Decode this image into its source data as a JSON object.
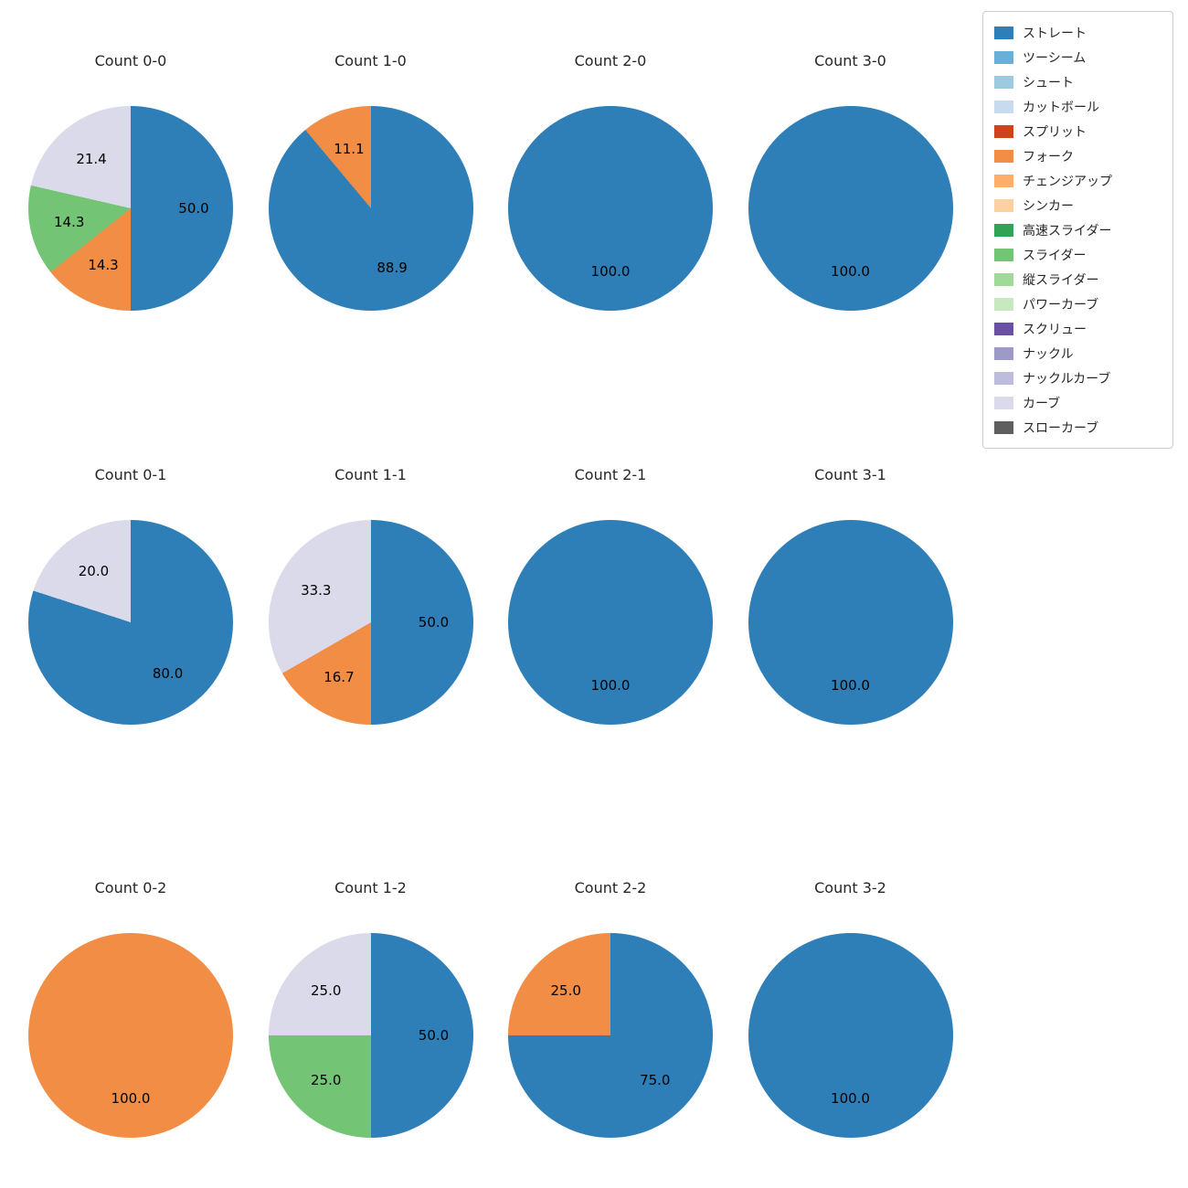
{
  "figure": {
    "background": "#ffffff",
    "text_color": "#262626"
  },
  "palette": {
    "ストレート": "#2e7eb8",
    "ツーシーム": "#6baed6",
    "シュート": "#9ecae1",
    "カットボール": "#c6dbef",
    "スプリット": "#d1431f",
    "フォーク": "#f18d44",
    "チェンジアップ": "#fdae6b",
    "シンカー": "#fdd0a2",
    "高速スライダー": "#31a354",
    "スライダー": "#74c476",
    "縦スライダー": "#a1d99b",
    "パワーカーブ": "#c7e9c0",
    "スクリュー": "#6a51a3",
    "ナックル": "#9e9ac8",
    "ナックルカーブ": "#bcbddc",
    "カーブ": "#dadaeb",
    "スローカーブ": "#5f5f5f"
  },
  "legend": {
    "position": "upper right",
    "items": [
      "ストレート",
      "ツーシーム",
      "シュート",
      "カットボール",
      "スプリット",
      "フォーク",
      "チェンジアップ",
      "シンカー",
      "高速スライダー",
      "スライダー",
      "縦スライダー",
      "パワーカーブ",
      "スクリュー",
      "ナックル",
      "ナックルカーブ",
      "カーブ",
      "スローカーブ"
    ]
  },
  "chart_data": [
    {
      "type": "pie",
      "title": "Count 0-0",
      "slices": [
        {
          "label": "ストレート",
          "value": 50.0
        },
        {
          "label": "フォーク",
          "value": 14.3
        },
        {
          "label": "スライダー",
          "value": 14.3
        },
        {
          "label": "カーブ",
          "value": 21.4
        }
      ]
    },
    {
      "type": "pie",
      "title": "Count 1-0",
      "slices": [
        {
          "label": "ストレート",
          "value": 88.9
        },
        {
          "label": "フォーク",
          "value": 11.1
        }
      ]
    },
    {
      "type": "pie",
      "title": "Count 2-0",
      "slices": [
        {
          "label": "ストレート",
          "value": 100.0
        }
      ]
    },
    {
      "type": "pie",
      "title": "Count 3-0",
      "slices": [
        {
          "label": "ストレート",
          "value": 100.0
        }
      ]
    },
    {
      "type": "pie",
      "title": "Count 0-1",
      "slices": [
        {
          "label": "ストレート",
          "value": 80.0
        },
        {
          "label": "カーブ",
          "value": 20.0
        }
      ]
    },
    {
      "type": "pie",
      "title": "Count 1-1",
      "slices": [
        {
          "label": "ストレート",
          "value": 50.0
        },
        {
          "label": "フォーク",
          "value": 16.7
        },
        {
          "label": "カーブ",
          "value": 33.3
        }
      ]
    },
    {
      "type": "pie",
      "title": "Count 2-1",
      "slices": [
        {
          "label": "ストレート",
          "value": 100.0
        }
      ]
    },
    {
      "type": "pie",
      "title": "Count 3-1",
      "slices": [
        {
          "label": "ストレート",
          "value": 100.0
        }
      ]
    },
    {
      "type": "pie",
      "title": "Count 0-2",
      "slices": [
        {
          "label": "フォーク",
          "value": 100.0
        }
      ]
    },
    {
      "type": "pie",
      "title": "Count 1-2",
      "slices": [
        {
          "label": "ストレート",
          "value": 50.0
        },
        {
          "label": "スライダー",
          "value": 25.0
        },
        {
          "label": "カーブ",
          "value": 25.0
        }
      ]
    },
    {
      "type": "pie",
      "title": "Count 2-2",
      "slices": [
        {
          "label": "ストレート",
          "value": 75.0
        },
        {
          "label": "フォーク",
          "value": 25.0
        }
      ]
    },
    {
      "type": "pie",
      "title": "Count 3-2",
      "slices": [
        {
          "label": "ストレート",
          "value": 100.0
        }
      ]
    }
  ],
  "layout_hints": {
    "grid": "4 columns x 3 rows",
    "start_angle": "top, clockwise",
    "value_label_format": "one decimal"
  }
}
